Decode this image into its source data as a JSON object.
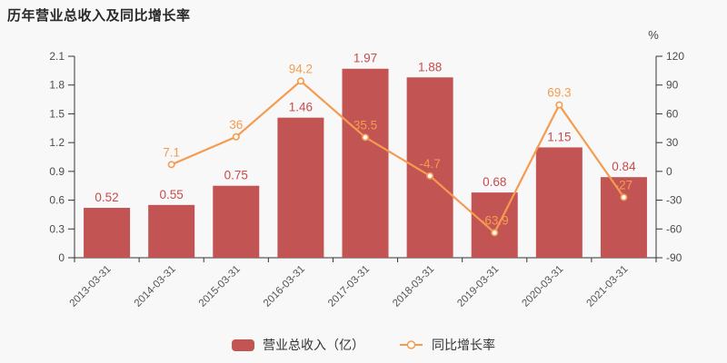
{
  "title": "历年营业总收入及同比增长率",
  "legend": {
    "bar": "营业总收入（亿）",
    "line": "同比增长率"
  },
  "colors": {
    "background": "#f8f8f8",
    "bar": "#c25454",
    "bar_label": "#ca4a4e",
    "line": "#f59b50",
    "line_label": "#f59b50",
    "axis": "#333333",
    "tick_text": "#4d4d4d",
    "marker_fill": "#ffffff"
  },
  "chart_data": {
    "type": "bar+line",
    "title": "历年营业总收入及同比增长率",
    "categories": [
      "2013-03-31",
      "2014-03-31",
      "2015-03-31",
      "2016-03-31",
      "2017-03-31",
      "2018-03-31",
      "2019-03-31",
      "2020-03-31",
      "2021-03-31"
    ],
    "series": [
      {
        "name": "营业总收入（亿）",
        "type": "bar",
        "yaxis": "left",
        "values": [
          0.52,
          0.55,
          0.75,
          1.46,
          1.97,
          1.88,
          0.68,
          1.15,
          0.84
        ],
        "labels": [
          "0.52",
          "0.55",
          "0.75",
          "1.46",
          "1.97",
          "1.88",
          "0.68",
          "1.15",
          "0.84"
        ]
      },
      {
        "name": "同比增长率",
        "type": "line",
        "yaxis": "right",
        "values": [
          null,
          7.1,
          36,
          94.2,
          35.5,
          -4.7,
          -63.9,
          69.3,
          -27
        ],
        "labels": [
          "",
          "7.1",
          "36",
          "94.2",
          "35.5",
          "-4.7",
          "-63.9",
          "69.3",
          "-27"
        ]
      }
    ],
    "left_axis": {
      "min": 0,
      "max": 2.1,
      "tick_step": 0.3,
      "tick_labels": [
        "0",
        "0.3",
        "0.6",
        "0.9",
        "1.2",
        "1.5",
        "1.8",
        "2.1"
      ]
    },
    "right_axis": {
      "min": -90,
      "max": 120,
      "tick_step": 30,
      "unit": "%",
      "tick_labels": [
        "-90",
        "-60",
        "-30",
        "0",
        "30",
        "60",
        "90",
        "120"
      ]
    },
    "grid": false,
    "legend_position": "bottom",
    "x_label_rotation": 45
  }
}
